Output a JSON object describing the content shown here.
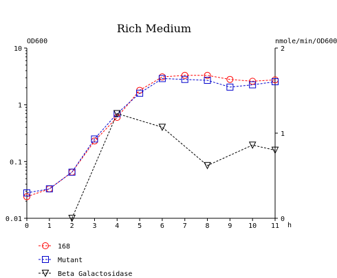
{
  "chart_data": {
    "type": "line",
    "title": "Rich Medium",
    "left_axis": {
      "label": "OD600",
      "scale": "log",
      "range": [
        0.01,
        10
      ],
      "ticks": [
        {
          "value": 0.01,
          "label": "0.01"
        },
        {
          "value": 0.1,
          "label": "0.1"
        },
        {
          "value": 1,
          "label": "1"
        },
        {
          "value": 10,
          "label": "10"
        }
      ]
    },
    "right_axis": {
      "label": "nmole/min/OD600",
      "scale": "linear",
      "range": [
        0,
        2
      ],
      "ticks": [
        {
          "value": 0,
          "label": "0"
        },
        {
          "value": 1,
          "label": "1"
        },
        {
          "value": 2,
          "label": "2"
        }
      ]
    },
    "x_axis": {
      "label": "h",
      "range": [
        0,
        11
      ],
      "ticks": [
        "0",
        "1",
        "2",
        "3",
        "4",
        "5",
        "6",
        "7",
        "8",
        "9",
        "10",
        "11"
      ]
    },
    "series": [
      {
        "name": "168",
        "axis": "left",
        "marker": "circle",
        "color": "#ff0000",
        "x": [
          0,
          1,
          2,
          3,
          4,
          5,
          6,
          7,
          8,
          9,
          10,
          11
        ],
        "y": [
          0.024,
          0.033,
          0.065,
          0.23,
          0.6,
          1.8,
          3.1,
          3.3,
          3.3,
          2.8,
          2.6,
          2.75
        ]
      },
      {
        "name": "Mutant",
        "axis": "left",
        "marker": "square",
        "color": "#0000cc",
        "x": [
          0,
          1,
          2,
          3,
          4,
          5,
          6,
          7,
          8,
          9,
          10,
          11
        ],
        "y": [
          0.028,
          0.033,
          0.065,
          0.25,
          0.7,
          1.6,
          2.9,
          2.8,
          2.7,
          2.05,
          2.25,
          2.55
        ]
      },
      {
        "name": "Beta Galactosidase",
        "axis": "right",
        "marker": "triangle-down",
        "color": "#000000",
        "x": [
          2,
          4,
          6,
          8,
          10,
          11
        ],
        "y": [
          0.0,
          1.23,
          1.07,
          0.62,
          0.86,
          0.8
        ]
      }
    ],
    "grid": false,
    "legend_position": "bottom-left"
  }
}
